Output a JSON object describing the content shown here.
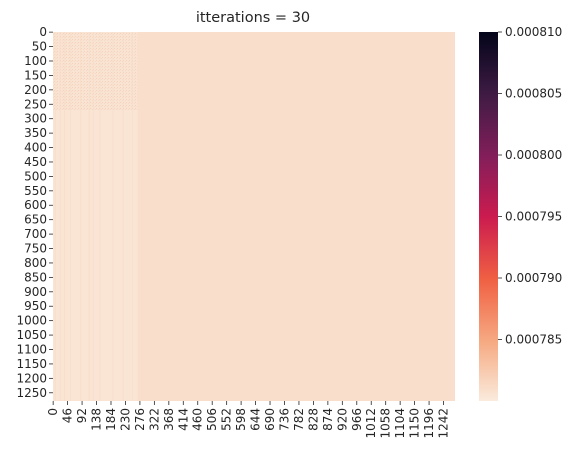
{
  "chart_data": {
    "type": "heatmap",
    "title": "itterations = 30",
    "n_rows": 1279,
    "n_cols": 1279,
    "y_ticks": [
      0,
      50,
      100,
      150,
      200,
      250,
      300,
      350,
      400,
      450,
      500,
      550,
      600,
      650,
      700,
      750,
      800,
      850,
      900,
      950,
      1000,
      1050,
      1100,
      1150,
      1200,
      1250
    ],
    "x_ticks": [
      0,
      46,
      92,
      138,
      184,
      230,
      276,
      322,
      368,
      414,
      460,
      506,
      552,
      598,
      644,
      690,
      736,
      782,
      828,
      874,
      920,
      966,
      1012,
      1058,
      1104,
      1150,
      1196,
      1242
    ],
    "block_boundary": 270,
    "regions": {
      "top_left_block": 0.000783,
      "left_strip": 0.0007805,
      "rest": 0.000781
    },
    "colorbar": {
      "min": 0.00078,
      "max": 0.00081,
      "ticks": [
        0.000785,
        0.00079,
        0.000795,
        0.0008,
        0.000805,
        0.00081
      ],
      "tick_labels": [
        "0.000785",
        "0.000790",
        "0.000795",
        "0.000800",
        "0.000805",
        "0.000810"
      ],
      "colormap": "rocket_r",
      "colors": [
        "#faebdd",
        "#f6aa82",
        "#f06043",
        "#cb1b4f",
        "#841e5a",
        "#3f1b44",
        "#03051a"
      ]
    }
  }
}
